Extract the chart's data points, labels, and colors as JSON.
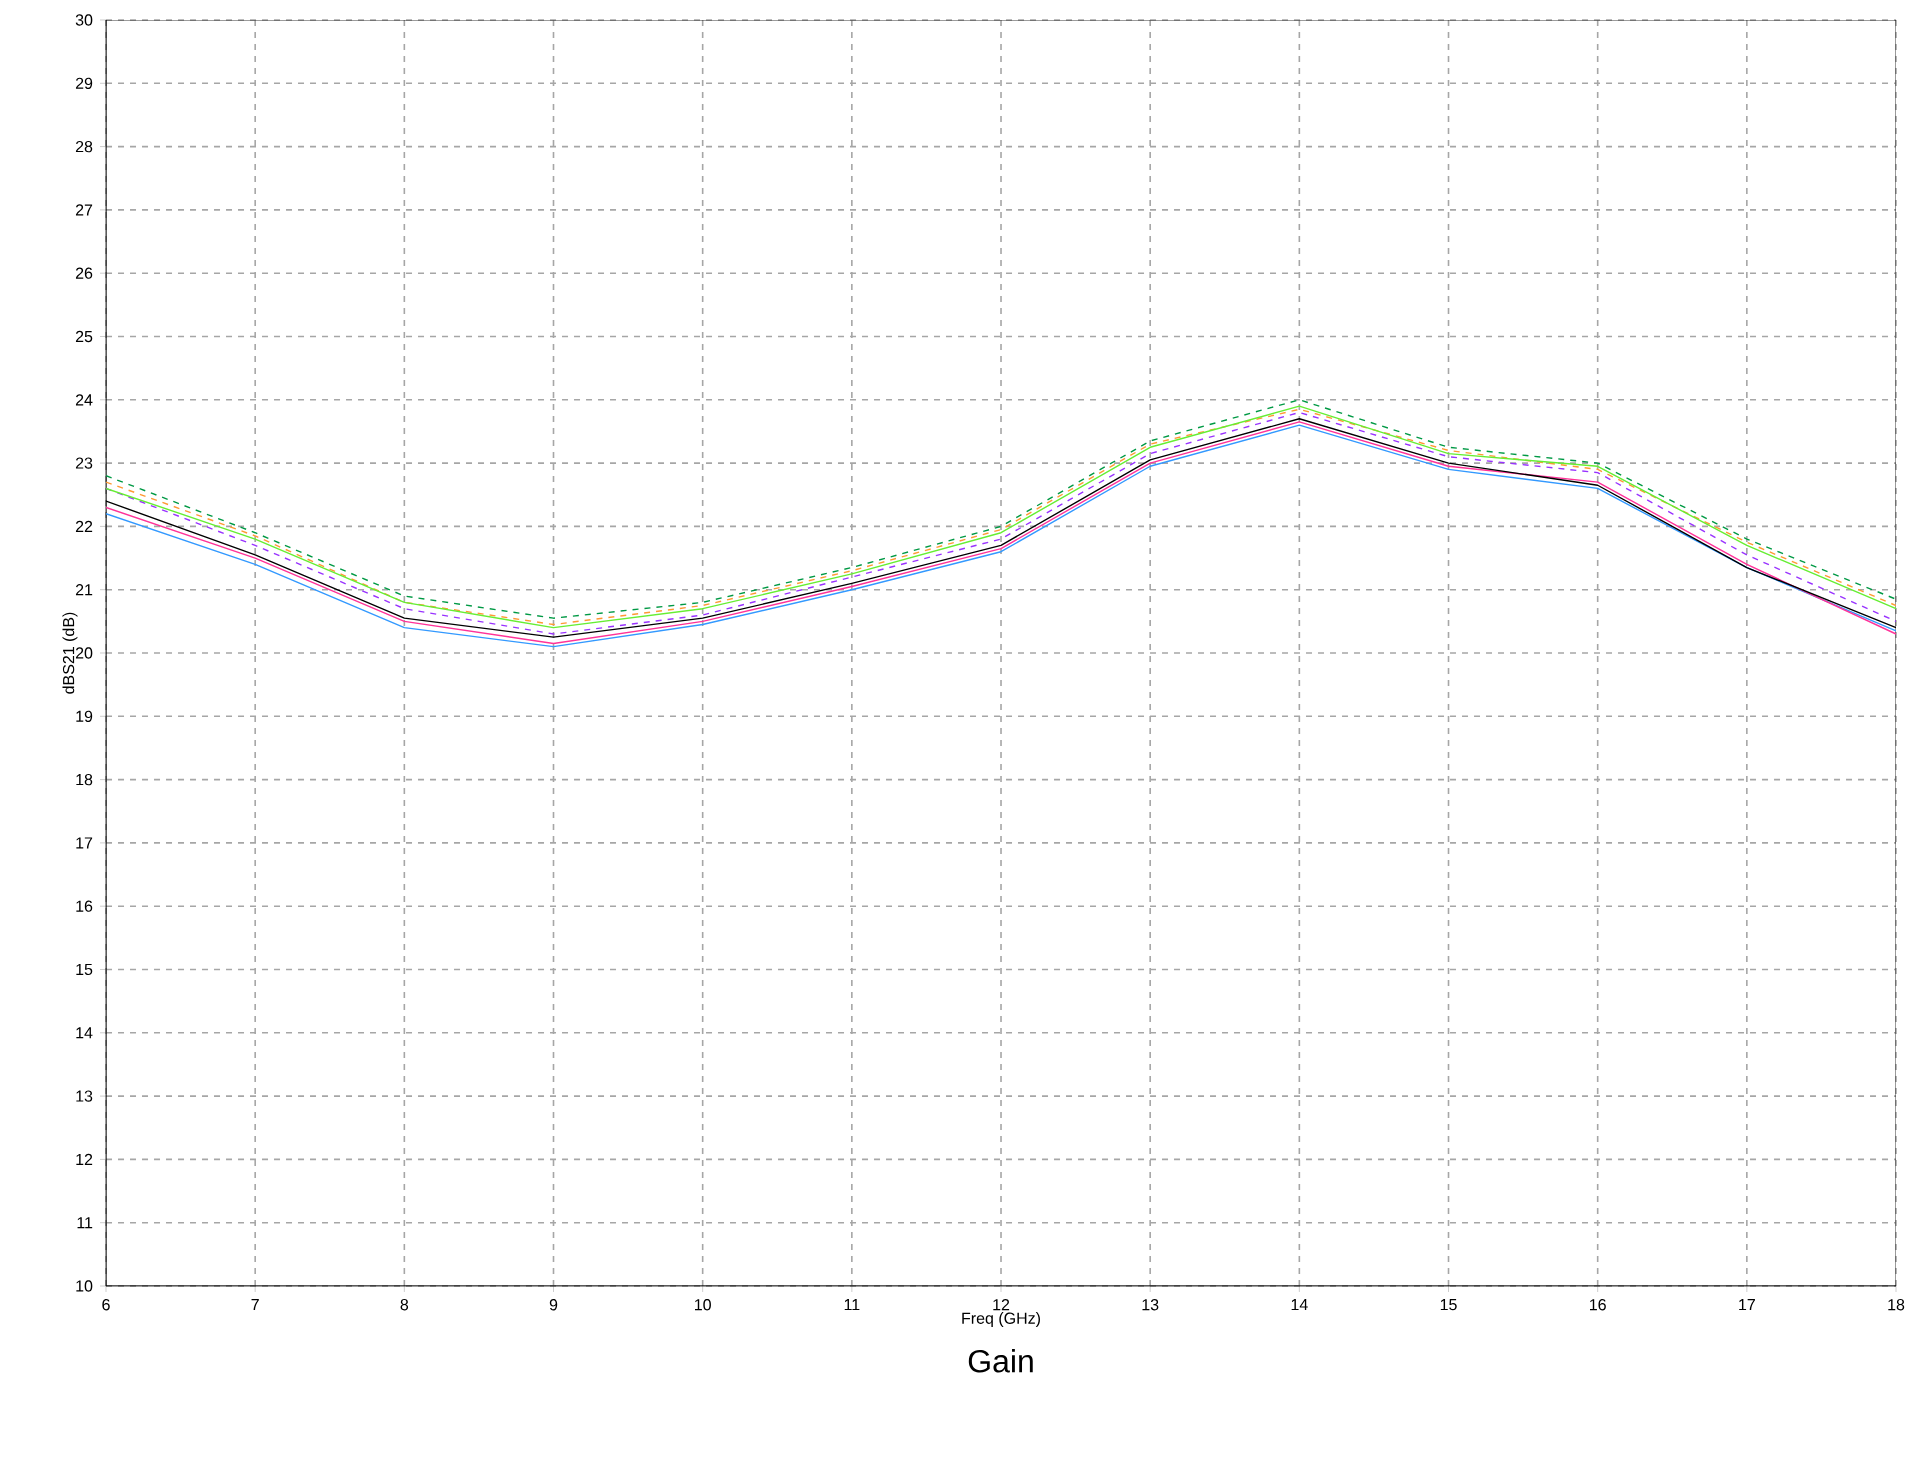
{
  "chart_data": {
    "type": "line",
    "title": "Gain",
    "xlabel": "Freq (GHz)",
    "ylabel": "dBS21 (dB)",
    "x": [
      6,
      7,
      8,
      9,
      10,
      11,
      12,
      13,
      14,
      15,
      16,
      17,
      18
    ],
    "series": [
      {
        "color": "#3399ff",
        "line_style": "solid",
        "values": [
          22.2,
          21.4,
          20.4,
          20.1,
          20.45,
          21.0,
          21.6,
          22.95,
          23.6,
          22.9,
          22.6,
          21.35,
          20.35
        ]
      },
      {
        "color": "#ff3399",
        "line_style": "solid",
        "values": [
          22.3,
          21.5,
          20.5,
          20.15,
          20.5,
          21.05,
          21.65,
          23.0,
          23.65,
          22.95,
          22.7,
          21.4,
          20.3
        ]
      },
      {
        "color": "#000000",
        "line_style": "solid",
        "values": [
          22.4,
          21.55,
          20.55,
          20.25,
          20.55,
          21.1,
          21.7,
          23.05,
          23.7,
          23.0,
          22.65,
          21.35,
          20.4
        ]
      },
      {
        "color": "#9933ff",
        "line_style": "dashed",
        "values": [
          22.6,
          21.7,
          20.7,
          20.3,
          20.6,
          21.2,
          21.8,
          23.15,
          23.8,
          23.1,
          22.85,
          21.55,
          20.5
        ]
      },
      {
        "color": "#ff9933",
        "line_style": "dashed",
        "values": [
          22.7,
          21.85,
          20.8,
          20.45,
          20.75,
          21.3,
          21.95,
          23.3,
          23.85,
          23.2,
          22.9,
          21.75,
          20.75
        ]
      },
      {
        "color": "#66ee33",
        "line_style": "solid",
        "values": [
          22.6,
          21.8,
          20.8,
          20.4,
          20.7,
          21.25,
          21.9,
          23.25,
          23.9,
          23.15,
          22.95,
          21.7,
          20.7
        ]
      },
      {
        "color": "#009944",
        "line_style": "dashed",
        "values": [
          22.8,
          21.9,
          20.9,
          20.55,
          20.8,
          21.35,
          22.0,
          23.35,
          24.0,
          23.25,
          23.0,
          21.8,
          20.85
        ]
      }
    ],
    "xlim": [
      6,
      18
    ],
    "xticks": [
      6,
      7,
      8,
      9,
      10,
      11,
      12,
      13,
      14,
      15,
      16,
      17,
      18
    ],
    "ylim": [
      10,
      30
    ],
    "yticks": [
      10,
      11,
      12,
      13,
      14,
      15,
      16,
      17,
      18,
      19,
      20,
      21,
      22,
      23,
      24,
      25,
      26,
      27,
      28,
      29,
      30
    ],
    "grid": true,
    "marker": "none"
  }
}
